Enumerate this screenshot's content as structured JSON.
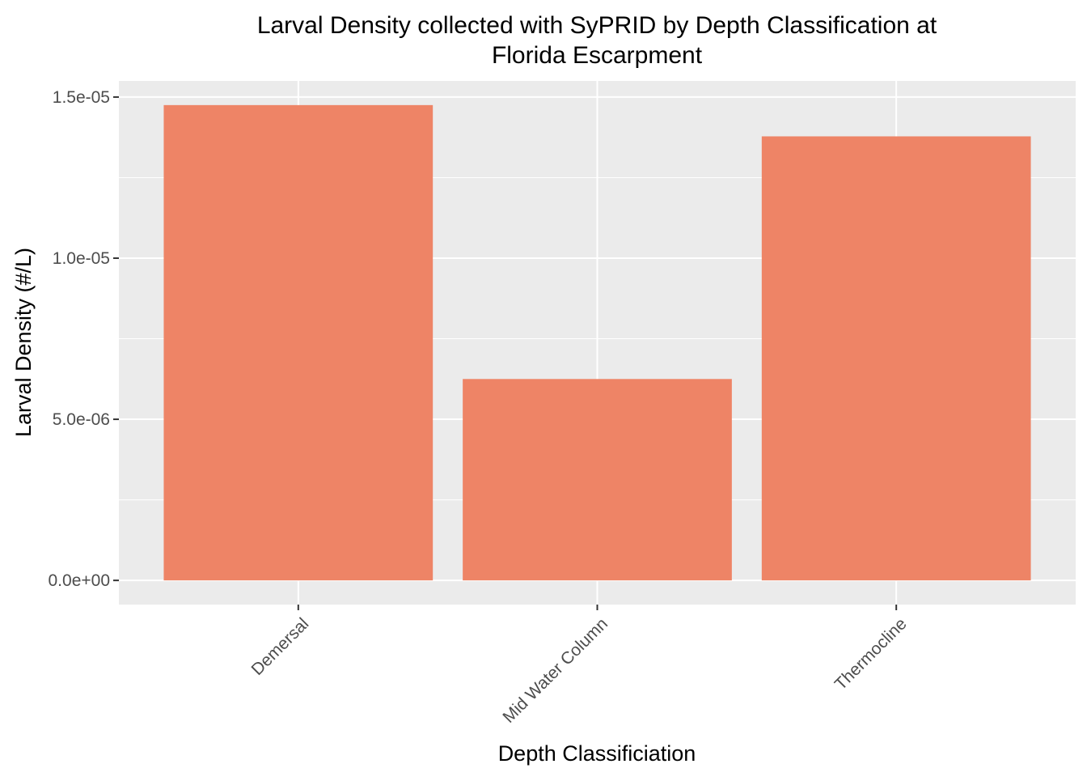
{
  "chart_data": {
    "type": "bar",
    "title_lines": [
      "Larval Density collected with SyPRID by Depth Classification at",
      "Florida Escarpment"
    ],
    "xlabel": "Depth Classificiation",
    "ylabel": "Larval Density (#/L)",
    "categories": [
      "Demersal",
      "Mid Water Column",
      "Thermocline"
    ],
    "values": [
      1.475e-05,
      6.25e-06,
      1.378e-05
    ],
    "ylim": [
      -7.5e-07,
      1.55e-05
    ],
    "y_ticks": [
      0,
      5e-06,
      1e-05,
      1.5e-05
    ],
    "y_tick_labels": [
      "0.0e+00",
      "5.0e-06",
      "1.0e-05",
      "1.5e-05"
    ],
    "bar_color": "#EE8466",
    "panel_background": "#EBEBEB",
    "grid": true,
    "legend": "none"
  }
}
